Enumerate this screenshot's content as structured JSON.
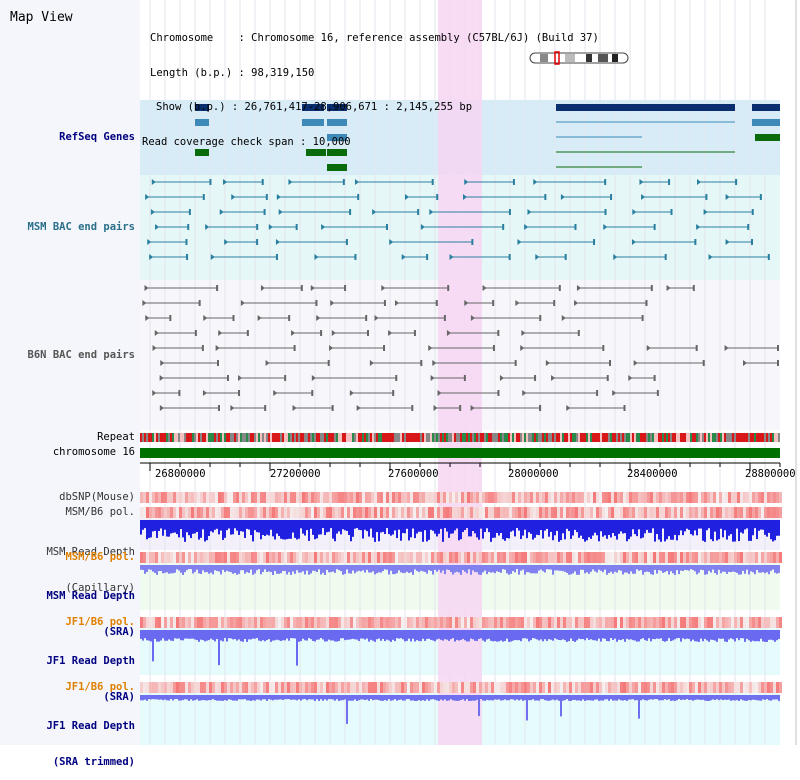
{
  "page": {
    "title": "Map View"
  },
  "info": {
    "chromosome_line": "Chromosome    : Chromosome 16, reference assembly (C57BL/6J) (Build 37)",
    "length_line": "Length (b.p.) : 98,319,150",
    "show_line": "Show (b.p.) : 26,761,417-28,906,671 : 2,145,255 bp",
    "span_line": "Read coverage check span : 10,000"
  },
  "tracks": {
    "refseq": "RefSeq Genes",
    "msm_bac": "MSM BAC end pairs",
    "b6n_bac": "B6N BAC end pairs",
    "repeat": "Repeat",
    "chromosome": "chromosome 16",
    "dbsnp": "dbSNP(Mouse)",
    "msm_b6_pol_1": "MSM/B6 pol.",
    "msm_read_depth_cap_1": "MSM Read Depth",
    "msm_read_depth_cap_2": "(Capillary)",
    "msm_b6_pol_2": "MSM/B6 pol.",
    "msm_read_depth_sra_1": "MSM Read Depth",
    "msm_read_depth_sra_2": "(SRA)",
    "jf1_b6_pol_1": "JF1/B6 pol.",
    "jf1_read_depth_sra_1": "JF1 Read Depth",
    "jf1_read_depth_sra_2": "(SRA)",
    "jf1_b6_pol_2": "JF1/B6 pol.",
    "jf1_read_depth_trim_1": "JF1 Read Depth",
    "jf1_read_depth_trim_2": "(SRA trimmed)"
  },
  "scale_ticks": [
    "26800000",
    "27200000",
    "27600000",
    "28000000",
    "28400000",
    "28800000"
  ],
  "colors": {
    "label_blue": "#000080",
    "label_orange": "#e08000",
    "label_teal": "#2a6f8a",
    "highlight": "#f7d6f2",
    "refseq_bg": "#d8ecf8",
    "msm_bg": "#e6f7f7",
    "gene_dark": "#0a2e6e",
    "gene_mid": "#3d8ab8",
    "gene_green": "#0a6b0a"
  }
}
